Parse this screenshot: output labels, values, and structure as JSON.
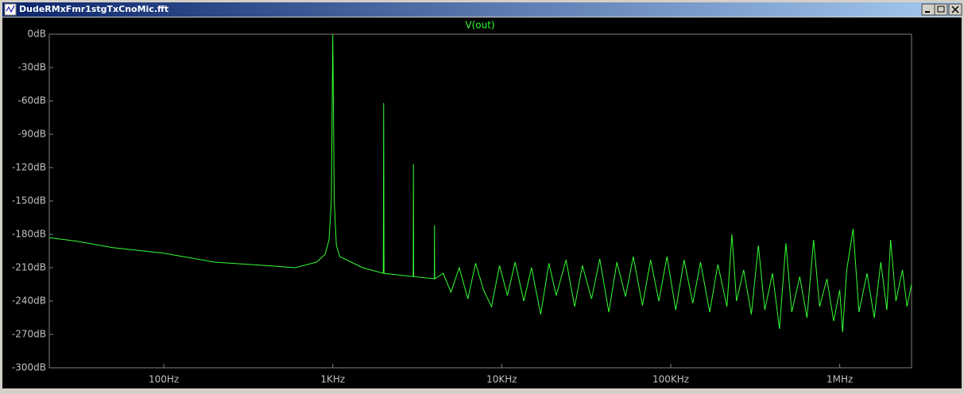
{
  "window": {
    "title": "DudeRMxFmr1stgTxCnoMic.fft"
  },
  "chart_data": {
    "type": "line",
    "x": [
      21,
      30,
      50,
      100,
      200,
      400,
      600,
      800,
      900,
      950,
      980,
      1000,
      1020,
      1050,
      1100,
      1500,
      1990,
      2000,
      2010,
      2990,
      3000,
      3010,
      3990,
      4000,
      4010,
      4500,
      5000,
      5600,
      6300,
      7000,
      7800,
      8700,
      9700,
      10800,
      12000,
      13500,
      15000,
      17000,
      19000,
      21000,
      24000,
      27000,
      30000,
      34000,
      38000,
      43000,
      48000,
      54000,
      60000,
      68000,
      76000,
      85000,
      95000,
      107000,
      120000,
      135000,
      150000,
      170000,
      190000,
      215000,
      230000,
      245000,
      270000,
      300000,
      330000,
      360000,
      400000,
      440000,
      480000,
      520000,
      580000,
      640000,
      700000,
      760000,
      840000,
      920000,
      1000000,
      1040000,
      1100000,
      1200000,
      1300000,
      1450000,
      1600000,
      1750000,
      1900000,
      2000000,
      2150000,
      2350000,
      2500000,
      2660000
    ],
    "series": [
      {
        "name": "V(out)",
        "color": "#33ff33",
        "values": [
          -183,
          -186,
          -192,
          -197,
          -205,
          -208,
          -210,
          -205,
          -198,
          -185,
          -150,
          0,
          -150,
          -190,
          -200,
          -210,
          -215,
          -62,
          -215,
          -218,
          -117,
          -218,
          -220,
          -172,
          -220,
          -215,
          -232,
          -210,
          -238,
          -206,
          -230,
          -245,
          -208,
          -235,
          -205,
          -240,
          -210,
          -252,
          -206,
          -235,
          -203,
          -245,
          -208,
          -238,
          -202,
          -250,
          -205,
          -236,
          -200,
          -244,
          -203,
          -240,
          -200,
          -248,
          -203,
          -242,
          -205,
          -250,
          -207,
          -245,
          -180,
          -240,
          -212,
          -252,
          -190,
          -248,
          -215,
          -265,
          -188,
          -250,
          -218,
          -255,
          -185,
          -245,
          -220,
          -258,
          -230,
          -268,
          -212,
          -175,
          -250,
          -215,
          -255,
          -205,
          -248,
          -185,
          -240,
          -212,
          -245,
          -225
        ]
      }
    ],
    "log_x": true,
    "xlim": [
      21,
      2660000
    ],
    "xticks": [
      {
        "value": 100,
        "label": "100Hz"
      },
      {
        "value": 1000,
        "label": "1KHz"
      },
      {
        "value": 10000,
        "label": "10KHz"
      },
      {
        "value": 100000,
        "label": "100KHz"
      },
      {
        "value": 1000000,
        "label": "1MHz"
      }
    ],
    "ylim": [
      -300,
      0
    ],
    "yticks": [
      {
        "value": 0,
        "label": "0dB"
      },
      {
        "value": -30,
        "label": "-30dB"
      },
      {
        "value": -60,
        "label": "-60dB"
      },
      {
        "value": -90,
        "label": "-90dB"
      },
      {
        "value": -120,
        "label": "-120dB"
      },
      {
        "value": -150,
        "label": "-150dB"
      },
      {
        "value": -180,
        "label": "-180dB"
      },
      {
        "value": -210,
        "label": "-210dB"
      },
      {
        "value": -240,
        "label": "-240dB"
      },
      {
        "value": -270,
        "label": "-270dB"
      },
      {
        "value": -300,
        "label": "-300dB"
      }
    ],
    "grid": false
  }
}
